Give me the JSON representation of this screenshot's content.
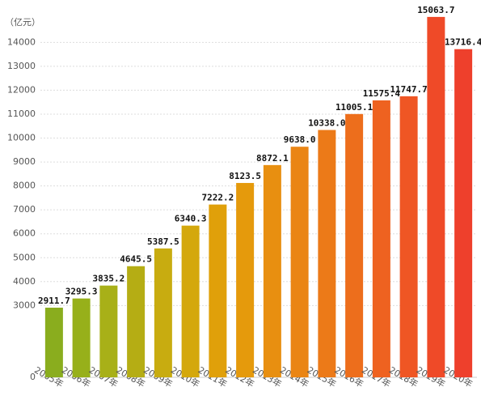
{
  "chart_data": {
    "type": "bar",
    "y_label": "（亿元）",
    "categories": [
      "2005年",
      "2006年",
      "2007年",
      "2008年",
      "2009年",
      "2010年",
      "2011年",
      "2012年",
      "2013年",
      "2014年",
      "2015年",
      "2016年",
      "2017年",
      "2018年",
      "2019年",
      "2020年"
    ],
    "values": [
      2911.7,
      3295.3,
      3835.2,
      4645.5,
      5387.5,
      6340.3,
      7222.2,
      8123.5,
      8872.1,
      9638.0,
      10338.0,
      11005.1,
      11575.4,
      11747.7,
      15063.7,
      13716.4
    ],
    "value_labels": [
      "2911.7",
      "3295.3",
      "3835.2",
      "4645.5",
      "5387.5",
      "6340.3",
      "7222.2",
      "8123.5",
      "8872.1",
      "9638.0",
      "10338.0",
      "11005.1",
      "11575.4",
      "11747.7",
      "15063.7",
      "13716.4"
    ],
    "colors": [
      "#8aad1e",
      "#97b01a",
      "#a8b018",
      "#b5ad14",
      "#c8ac10",
      "#d4a80c",
      "#e0a00a",
      "#e59a0c",
      "#e88f10",
      "#ea8514",
      "#ec7a18",
      "#ed6e1c",
      "#ee6220",
      "#ef5624",
      "#ef4a28",
      "#ee402c"
    ],
    "ylim": [
      0,
      15500
    ],
    "yticks": [
      0,
      3000,
      4000,
      5000,
      6000,
      7000,
      8000,
      9000,
      10000,
      11000,
      12000,
      13000,
      14000
    ],
    "grid": true
  }
}
